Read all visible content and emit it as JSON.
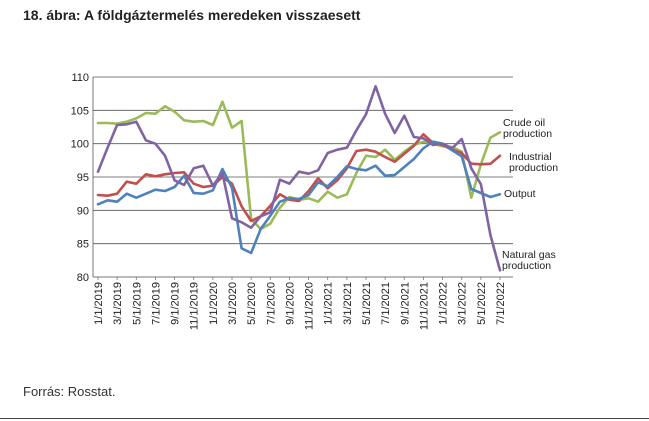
{
  "page": {
    "title": "18. ábra: A földgáztermelés meredeken visszaesett",
    "source": "Forrás: Rosstat."
  },
  "chart_data": {
    "type": "line",
    "title": "",
    "xlabel": "",
    "ylabel": "",
    "ylim": [
      80,
      110
    ],
    "yticks": [
      80,
      85,
      90,
      95,
      100,
      105,
      110
    ],
    "grid": "horizontal",
    "x": [
      "1/1/2019",
      "2/1/2019",
      "3/1/2019",
      "4/1/2019",
      "5/1/2019",
      "6/1/2019",
      "7/1/2019",
      "8/1/2019",
      "9/1/2019",
      "10/1/2019",
      "11/1/2019",
      "12/1/2019",
      "1/1/2020",
      "2/1/2020",
      "3/1/2020",
      "4/1/2020",
      "5/1/2020",
      "6/1/2020",
      "7/1/2020",
      "8/1/2020",
      "9/1/2020",
      "10/1/2020",
      "11/1/2020",
      "12/1/2020",
      "1/1/2021",
      "2/1/2021",
      "3/1/2021",
      "4/1/2021",
      "5/1/2021",
      "6/1/2021",
      "7/1/2021",
      "8/1/2021",
      "9/1/2021",
      "10/1/2021",
      "11/1/2021",
      "12/1/2021",
      "1/1/2022",
      "2/1/2022",
      "3/1/2022",
      "4/1/2022",
      "5/1/2022",
      "6/1/2022",
      "7/1/2022"
    ],
    "x_tick_labels": [
      "1/1/2019",
      "3/1/2019",
      "5/1/2019",
      "7/1/2019",
      "9/1/2019",
      "11/1/2019",
      "1/1/2020",
      "3/1/2020",
      "5/1/2020",
      "7/1/2020",
      "9/1/2020",
      "11/1/2020",
      "1/1/2021",
      "3/1/2021",
      "5/1/2021",
      "7/1/2021",
      "9/1/2021",
      "11/1/2021",
      "1/1/2022",
      "3/1/2022",
      "5/1/2022",
      "7/1/2022"
    ],
    "series": [
      {
        "name": "Crude oil production",
        "color": "#9bbb59",
        "values": [
          103.1,
          103.1,
          103.0,
          103.3,
          103.8,
          104.6,
          104.5,
          105.6,
          104.8,
          103.5,
          103.3,
          103.4,
          102.8,
          106.3,
          102.4,
          103.4,
          88.7,
          87.2,
          88.0,
          90.4,
          92.0,
          91.6,
          91.8,
          91.3,
          92.8,
          91.9,
          92.4,
          95.6,
          98.2,
          98.0,
          99.1,
          97.6,
          98.8,
          99.8,
          100.3,
          100.0,
          99.6,
          99.5,
          98.8,
          91.9,
          96.9,
          100.9,
          101.7
        ]
      },
      {
        "name": "Industrial production",
        "color": "#c0504d",
        "values": [
          92.3,
          92.2,
          92.5,
          94.3,
          94.0,
          95.4,
          95.1,
          95.4,
          95.6,
          95.7,
          94.0,
          93.5,
          93.7,
          95.0,
          94.0,
          90.6,
          88.4,
          89.1,
          90.7,
          92.4,
          91.6,
          91.4,
          92.9,
          94.8,
          93.3,
          94.5,
          96.3,
          98.9,
          99.1,
          98.8,
          98.0,
          97.3,
          98.5,
          99.7,
          101.4,
          100.1,
          99.8,
          99.1,
          98.6,
          97.0,
          96.9,
          97.0,
          98.2
        ]
      },
      {
        "name": "Output",
        "color": "#4f81bd",
        "values": [
          90.9,
          91.5,
          91.3,
          92.5,
          91.9,
          92.5,
          93.1,
          92.9,
          93.5,
          95.2,
          92.6,
          92.5,
          93.0,
          96.2,
          93.4,
          84.3,
          83.6,
          87.2,
          89.2,
          91.3,
          91.8,
          91.7,
          92.3,
          94.2,
          93.6,
          95.0,
          96.6,
          96.2,
          96.0,
          96.7,
          95.2,
          95.3,
          96.5,
          97.7,
          99.3,
          100.3,
          100.0,
          99.0,
          98.1,
          93.2,
          92.6,
          92.0,
          92.4
        ]
      },
      {
        "name": "Natural gas production",
        "color": "#8064a2",
        "values": [
          95.8,
          99.4,
          102.8,
          102.9,
          103.3,
          100.5,
          100.0,
          98.2,
          94.5,
          93.8,
          96.3,
          96.7,
          93.7,
          95.6,
          88.8,
          88.2,
          87.4,
          89.1,
          89.7,
          94.6,
          94.0,
          95.8,
          95.5,
          96.0,
          98.6,
          99.1,
          99.4,
          102.0,
          104.4,
          108.6,
          104.5,
          101.6,
          104.2,
          101.0,
          100.8,
          99.8,
          100.0,
          99.3,
          100.7,
          96.3,
          93.9,
          86.3,
          81.0
        ]
      }
    ],
    "legend": "labels at line ends (right)"
  }
}
